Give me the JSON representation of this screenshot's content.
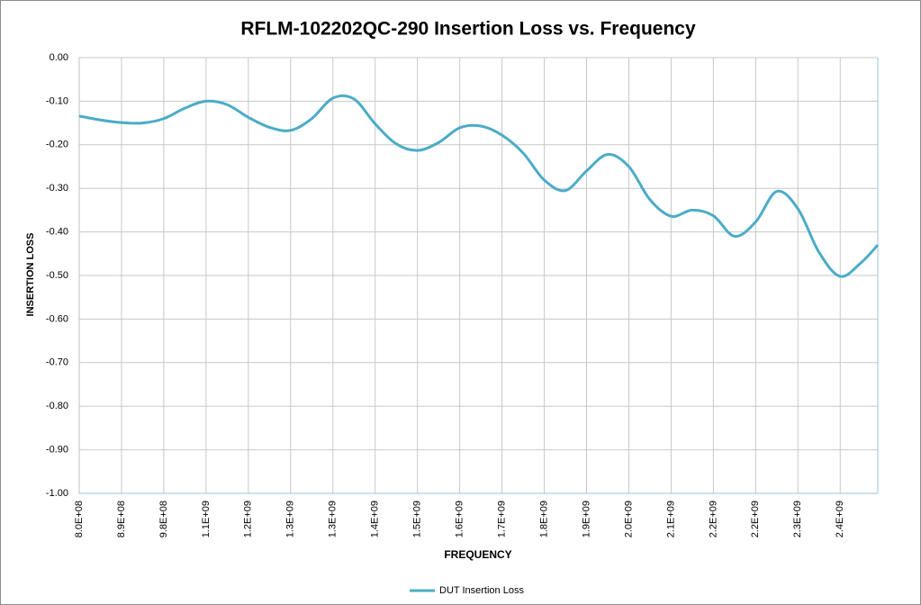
{
  "chart_data": {
    "type": "line",
    "title": "RFLM-102202QC-290 Insertion Loss vs. Frequency",
    "xlabel": "FREQUENCY",
    "ylabel": "INSERTION LOSS",
    "x": [
      800000000,
      845000000,
      890000000,
      935000000,
      980000000,
      1025000000,
      1070000000,
      1115000000,
      1160000000,
      1205000000,
      1250000000,
      1295000000,
      1340000000,
      1385000000,
      1430000000,
      1475000000,
      1520000000,
      1565000000,
      1610000000,
      1655000000,
      1700000000,
      1745000000,
      1790000000,
      1835000000,
      1880000000,
      1925000000,
      1970000000,
      2015000000,
      2060000000,
      2105000000,
      2150000000,
      2195000000,
      2240000000,
      2285000000,
      2330000000,
      2375000000,
      2420000000,
      2465000000,
      2500000000
    ],
    "series": [
      {
        "name": "DUT Insertion Loss",
        "color": "#4bacc6",
        "values": [
          -0.134,
          -0.143,
          -0.149,
          -0.15,
          -0.14,
          -0.116,
          -0.1,
          -0.108,
          -0.137,
          -0.16,
          -0.167,
          -0.14,
          -0.093,
          -0.095,
          -0.152,
          -0.198,
          -0.213,
          -0.195,
          -0.161,
          -0.157,
          -0.178,
          -0.219,
          -0.281,
          -0.305,
          -0.26,
          -0.222,
          -0.25,
          -0.326,
          -0.364,
          -0.35,
          -0.363,
          -0.41,
          -0.377,
          -0.307,
          -0.347,
          -0.447,
          -0.502,
          -0.47,
          -0.43
        ]
      }
    ],
    "xlim": [
      800000000,
      2500000000
    ],
    "xticks": [
      {
        "value": 800000000,
        "label": "8.0E+08"
      },
      {
        "value": 890000000,
        "label": "8.9E+08"
      },
      {
        "value": 980000000,
        "label": "9.8E+08"
      },
      {
        "value": 1070000000,
        "label": "1.1E+09"
      },
      {
        "value": 1160000000,
        "label": "1.2E+09"
      },
      {
        "value": 1250000000,
        "label": "1.3E+09"
      },
      {
        "value": 1340000000,
        "label": "1.3E+09"
      },
      {
        "value": 1430000000,
        "label": "1.4E+09"
      },
      {
        "value": 1520000000,
        "label": "1.5E+09"
      },
      {
        "value": 1610000000,
        "label": "1.6E+09"
      },
      {
        "value": 1700000000,
        "label": "1.7E+09"
      },
      {
        "value": 1790000000,
        "label": "1.8E+09"
      },
      {
        "value": 1880000000,
        "label": "1.9E+09"
      },
      {
        "value": 1970000000,
        "label": "2.0E+09"
      },
      {
        "value": 2060000000,
        "label": "2.1E+09"
      },
      {
        "value": 2150000000,
        "label": "2.2E+09"
      },
      {
        "value": 2240000000,
        "label": "2.2E+09"
      },
      {
        "value": 2330000000,
        "label": "2.3E+09"
      },
      {
        "value": 2420000000,
        "label": "2.4E+09"
      }
    ],
    "ylim": [
      -1,
      0
    ],
    "yticks": [
      {
        "value": 0,
        "label": "0.00"
      },
      {
        "value": -0.1,
        "label": "-0.10"
      },
      {
        "value": -0.2,
        "label": "-0.20"
      },
      {
        "value": -0.3,
        "label": "-0.30"
      },
      {
        "value": -0.4,
        "label": "-0.40"
      },
      {
        "value": -0.5,
        "label": "-0.50"
      },
      {
        "value": -0.6,
        "label": "-0.60"
      },
      {
        "value": -0.7,
        "label": "-0.70"
      },
      {
        "value": -0.8,
        "label": "-0.80"
      },
      {
        "value": -0.9,
        "label": "-0.90"
      },
      {
        "value": -1,
        "label": "-1.00"
      }
    ],
    "grid": true,
    "legend": "bottom"
  }
}
